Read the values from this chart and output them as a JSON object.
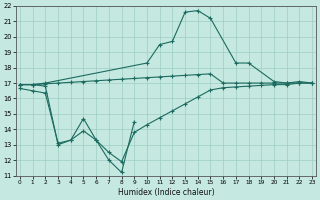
{
  "xlabel": "Humidex (Indice chaleur)",
  "bg_color": "#c5e8e0",
  "grid_color": "#9ecec4",
  "line_color": "#1c6b60",
  "curve_main_x": [
    0,
    1,
    2,
    10,
    11,
    12,
    13,
    14,
    15,
    17,
    18,
    20,
    21,
    22,
    23
  ],
  "curve_main_y": [
    16.9,
    16.9,
    17.0,
    18.3,
    19.5,
    19.7,
    21.6,
    21.7,
    21.2,
    18.3,
    18.3,
    17.1,
    17.0,
    17.1,
    17.0
  ],
  "curve_low_x": [
    0,
    1,
    2,
    3,
    4,
    5,
    6,
    7,
    8,
    9
  ],
  "curve_low_y": [
    16.9,
    16.9,
    16.8,
    13.0,
    13.3,
    14.7,
    13.3,
    12.0,
    11.2,
    14.5
  ],
  "curve_upper_x": [
    0,
    1,
    2,
    3,
    4,
    5,
    6,
    7,
    8,
    9,
    10,
    11,
    12,
    13,
    14,
    15,
    16,
    17,
    18,
    19,
    20,
    21,
    22,
    23
  ],
  "curve_upper_y": [
    16.9,
    16.9,
    16.95,
    17.0,
    17.05,
    17.1,
    17.15,
    17.2,
    17.25,
    17.3,
    17.35,
    17.4,
    17.45,
    17.5,
    17.55,
    17.6,
    17.0,
    17.0,
    17.0,
    17.0,
    17.0,
    17.0,
    17.0,
    17.0
  ],
  "curve_diag_x": [
    0,
    1,
    2,
    3,
    4,
    5,
    6,
    7,
    8,
    9,
    10,
    11,
    12,
    13,
    14,
    15,
    16,
    17,
    18,
    19,
    20,
    21,
    22,
    23
  ],
  "curve_diag_y": [
    16.65,
    16.5,
    16.35,
    13.1,
    13.3,
    13.9,
    13.3,
    12.5,
    11.9,
    13.8,
    14.3,
    14.75,
    15.2,
    15.65,
    16.1,
    16.55,
    16.7,
    16.75,
    16.8,
    16.85,
    16.9,
    16.9,
    17.0,
    17.0
  ],
  "xlim": [
    -0.3,
    23.3
  ],
  "ylim": [
    11,
    22
  ],
  "xticks": [
    0,
    1,
    2,
    3,
    4,
    5,
    6,
    7,
    8,
    9,
    10,
    11,
    12,
    13,
    14,
    15,
    16,
    17,
    18,
    19,
    20,
    21,
    22,
    23
  ],
  "yticks": [
    11,
    12,
    13,
    14,
    15,
    16,
    17,
    18,
    19,
    20,
    21,
    22
  ]
}
